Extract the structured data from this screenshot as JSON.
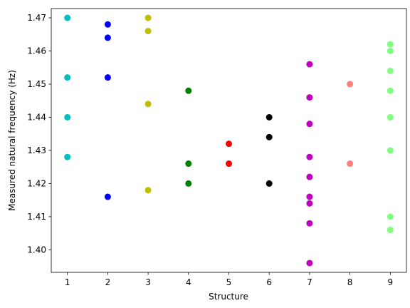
{
  "chart_data": {
    "type": "scatter",
    "title": "",
    "xlabel": "Structure",
    "ylabel": "Measured natural frequency (Hz)",
    "xlim": [
      0.6,
      9.4
    ],
    "ylim": [
      1.3932,
      1.4728
    ],
    "grid": false,
    "x_ticks": [
      1,
      2,
      3,
      4,
      5,
      6,
      7,
      8,
      9
    ],
    "y_ticks": [
      1.4,
      1.41,
      1.42,
      1.43,
      1.44,
      1.45,
      1.46,
      1.47
    ],
    "x_tick_labels": [
      "1",
      "2",
      "3",
      "4",
      "5",
      "6",
      "7",
      "8",
      "9"
    ],
    "y_tick_labels": [
      "1.40",
      "1.41",
      "1.42",
      "1.43",
      "1.44",
      "1.45",
      "1.46",
      "1.47"
    ],
    "series": [
      {
        "color": "#00bfbf",
        "points": [
          [
            1,
            1.47
          ],
          [
            1,
            1.452
          ],
          [
            1,
            1.44
          ],
          [
            1,
            1.428
          ]
        ]
      },
      {
        "color": "#0000ff",
        "points": [
          [
            2,
            1.468
          ],
          [
            2,
            1.464
          ],
          [
            2,
            1.452
          ],
          [
            2,
            1.416
          ]
        ]
      },
      {
        "color": "#bfbf00",
        "points": [
          [
            3,
            1.47
          ],
          [
            3,
            1.466
          ],
          [
            3,
            1.444
          ],
          [
            3,
            1.418
          ]
        ]
      },
      {
        "color": "#008000",
        "points": [
          [
            4,
            1.448
          ],
          [
            4,
            1.426
          ],
          [
            4,
            1.42
          ]
        ]
      },
      {
        "color": "#ff0000",
        "points": [
          [
            5,
            1.432
          ],
          [
            5,
            1.426
          ]
        ]
      },
      {
        "color": "#000000",
        "points": [
          [
            6,
            1.44
          ],
          [
            6,
            1.434
          ],
          [
            6,
            1.42
          ]
        ]
      },
      {
        "color": "#bf00bf",
        "points": [
          [
            7,
            1.456
          ],
          [
            7,
            1.446
          ],
          [
            7,
            1.438
          ],
          [
            7,
            1.428
          ],
          [
            7,
            1.422
          ],
          [
            7,
            1.416
          ],
          [
            7,
            1.414
          ],
          [
            7,
            1.408
          ],
          [
            7,
            1.396
          ]
        ]
      },
      {
        "color": "#ff7f7f",
        "points": [
          [
            8,
            1.45
          ],
          [
            8,
            1.426
          ]
        ]
      },
      {
        "color": "#7fff7f",
        "points": [
          [
            9,
            1.462
          ],
          [
            9,
            1.46
          ],
          [
            9,
            1.454
          ],
          [
            9,
            1.448
          ],
          [
            9,
            1.44
          ],
          [
            9,
            1.43
          ],
          [
            9,
            1.41
          ],
          [
            9,
            1.406
          ]
        ]
      }
    ]
  }
}
